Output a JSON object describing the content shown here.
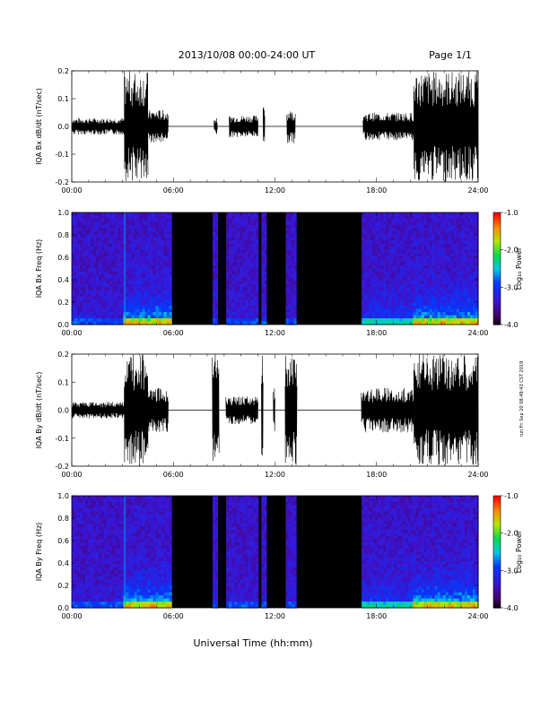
{
  "header": {
    "date_range": "2013/10/08  00:00-24:00 UT",
    "page": "Page 1/1"
  },
  "side_stamp": "run Fri Sep 20 08:49:43 CST 2019",
  "footer": {
    "xlabel": "Universal Time (hh:mm)"
  },
  "colors": {
    "data_gap": "#000000",
    "background": "#ffffff"
  },
  "colorbar": {
    "label": "Log₁₀ Power",
    "ticks": [
      "-1.0",
      "-2.0",
      "-3.0",
      "-4.0"
    ],
    "range": [
      -4.0,
      -1.0
    ],
    "colormap": "rainbow: black-purple-blue-cyan-green-yellow-orange-red"
  },
  "chart_data": [
    {
      "type": "line",
      "id": "bx-waveform",
      "ylabel": "IQA Bx dB/dt (nT/sec)",
      "xlim": [
        "00:00",
        "24:00"
      ],
      "ylim": [
        -0.2,
        0.2
      ],
      "x_ticks": [
        "00:00",
        "06:00",
        "12:00",
        "18:00",
        "24:00"
      ],
      "y_ticks": [
        "0.2",
        "0.1",
        "0.0",
        "-0.1",
        "-0.2"
      ],
      "segments": [
        {
          "start": 0.0,
          "end": 3.1,
          "amplitude": 0.03
        },
        {
          "start": 3.1,
          "end": 4.5,
          "amplitude": 0.2
        },
        {
          "start": 4.5,
          "end": 5.7,
          "amplitude": 0.06
        },
        {
          "start": 8.4,
          "end": 8.6,
          "amplitude": 0.03
        },
        {
          "start": 9.3,
          "end": 11.0,
          "amplitude": 0.04
        },
        {
          "start": 11.3,
          "end": 11.4,
          "amplitude": 0.09
        },
        {
          "start": 12.7,
          "end": 13.2,
          "amplitude": 0.06
        },
        {
          "start": 17.2,
          "end": 20.2,
          "amplitude": 0.05
        },
        {
          "start": 20.2,
          "end": 24.0,
          "amplitude": 0.2
        }
      ]
    },
    {
      "type": "heatmap",
      "id": "bx-spectrogram",
      "ylabel": "IQA Bx Freq (Hz)",
      "xlim": [
        "00:00",
        "24:00"
      ],
      "ylim": [
        0.0,
        1.0
      ],
      "x_ticks": [
        "00:00",
        "06:00",
        "12:00",
        "18:00",
        "24:00"
      ],
      "y_ticks": [
        "1.0",
        "0.8",
        "0.6",
        "0.4",
        "0.2",
        "0.0"
      ],
      "gaps": [
        [
          6.0,
          8.3
        ],
        [
          8.65,
          9.1
        ],
        [
          11.0,
          11.25
        ],
        [
          11.45,
          12.6
        ],
        [
          13.25,
          17.1
        ]
      ]
    },
    {
      "type": "line",
      "id": "by-waveform",
      "ylabel": "IQA By dB/dt (nT/sec)",
      "xlim": [
        "00:00",
        "24:00"
      ],
      "ylim": [
        -0.2,
        0.2
      ],
      "x_ticks": [
        "00:00",
        "06:00",
        "12:00",
        "18:00",
        "24:00"
      ],
      "y_ticks": [
        "0.2",
        "0.1",
        "0.0",
        "-0.1",
        "-0.2"
      ],
      "segments": [
        {
          "start": 0.0,
          "end": 3.1,
          "amplitude": 0.03
        },
        {
          "start": 3.1,
          "end": 4.5,
          "amplitude": 0.2
        },
        {
          "start": 4.5,
          "end": 5.7,
          "amplitude": 0.08
        },
        {
          "start": 8.3,
          "end": 8.7,
          "amplitude": 0.2
        },
        {
          "start": 9.1,
          "end": 11.0,
          "amplitude": 0.05
        },
        {
          "start": 11.2,
          "end": 11.3,
          "amplitude": 0.2
        },
        {
          "start": 11.9,
          "end": 12.0,
          "amplitude": 0.08
        },
        {
          "start": 12.6,
          "end": 13.3,
          "amplitude": 0.2
        },
        {
          "start": 17.1,
          "end": 20.2,
          "amplitude": 0.08
        },
        {
          "start": 20.2,
          "end": 24.0,
          "amplitude": 0.2
        }
      ]
    },
    {
      "type": "heatmap",
      "id": "by-spectrogram",
      "ylabel": "IQA By Freq (Hz)",
      "xlim": [
        "00:00",
        "24:00"
      ],
      "ylim": [
        0.0,
        1.0
      ],
      "x_ticks": [
        "00:00",
        "06:00",
        "12:00",
        "18:00",
        "24:00"
      ],
      "y_ticks": [
        "1.0",
        "0.8",
        "0.6",
        "0.4",
        "0.2",
        "0.0"
      ],
      "gaps": [
        [
          6.0,
          8.3
        ],
        [
          8.65,
          9.1
        ],
        [
          11.0,
          11.25
        ],
        [
          11.45,
          12.6
        ],
        [
          13.25,
          17.1
        ]
      ]
    }
  ]
}
